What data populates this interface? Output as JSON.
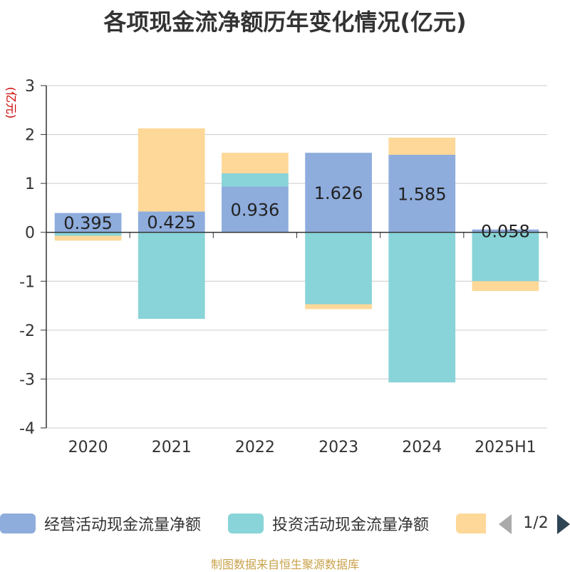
{
  "title": "各项现金流净额历年变化情况(亿元)",
  "source_note": "制图数据来自恒生聚源数据库",
  "colors": {
    "operating": "#8eacdc",
    "investing": "#88d4d8",
    "financing": "#fdd898",
    "ylabel": "#cc0000"
  },
  "legend": {
    "items": [
      {
        "label": "经营活动现金流量净额",
        "color": "#8eacdc"
      },
      {
        "label": "投资活动现金流量净额",
        "color": "#88d4d8"
      },
      {
        "label": "",
        "color": "#fdd898"
      }
    ],
    "pager": "1/2"
  },
  "chart_data": {
    "type": "bar",
    "stacked": true,
    "ylabel": "(亿元)",
    "ylim": [
      -4,
      3
    ],
    "yticks": [
      "3",
      "2",
      "1",
      "0",
      "-1",
      "-2",
      "-3",
      "-4"
    ],
    "grid": true,
    "categories": [
      "2020",
      "2021",
      "2022",
      "2023",
      "2024",
      "2025H1"
    ],
    "series": [
      {
        "name": "经营活动现金流量净额",
        "values": [
          0.395,
          0.425,
          0.936,
          1.626,
          1.585,
          0.058
        ],
        "labels": [
          "0.395",
          "0.425",
          "0.936",
          "1.626",
          "1.585",
          "0.058"
        ]
      },
      {
        "name": "投资活动现金流量净额",
        "values": [
          -0.07,
          -1.77,
          0.27,
          -1.47,
          -3.07,
          -1.0
        ]
      },
      {
        "values": [
          -0.1,
          1.7,
          0.42,
          -0.1,
          0.35,
          -0.2
        ]
      }
    ],
    "legend_position": "bottom"
  }
}
